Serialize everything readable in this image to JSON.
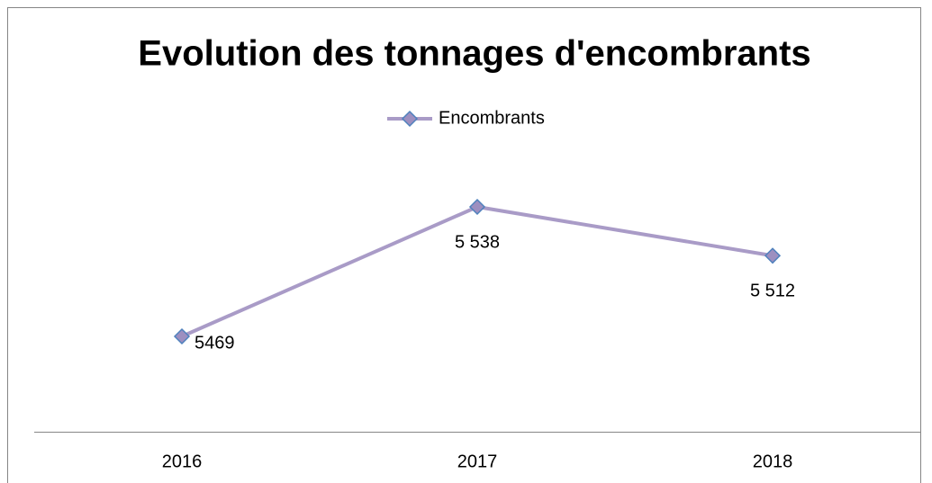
{
  "chart_data": {
    "type": "line",
    "title": "Evolution des tonnages d'encombrants",
    "categories": [
      "2016",
      "2017",
      "2018"
    ],
    "series": [
      {
        "name": "Encombrants",
        "color": "#a99bc7",
        "marker_color": "#9d8fc0",
        "marker_edge": "#4f81bd",
        "values": [
          5469,
          5538,
          5512
        ],
        "value_labels": [
          "5469",
          "5 538",
          "5 512"
        ]
      }
    ],
    "legend": "top"
  }
}
